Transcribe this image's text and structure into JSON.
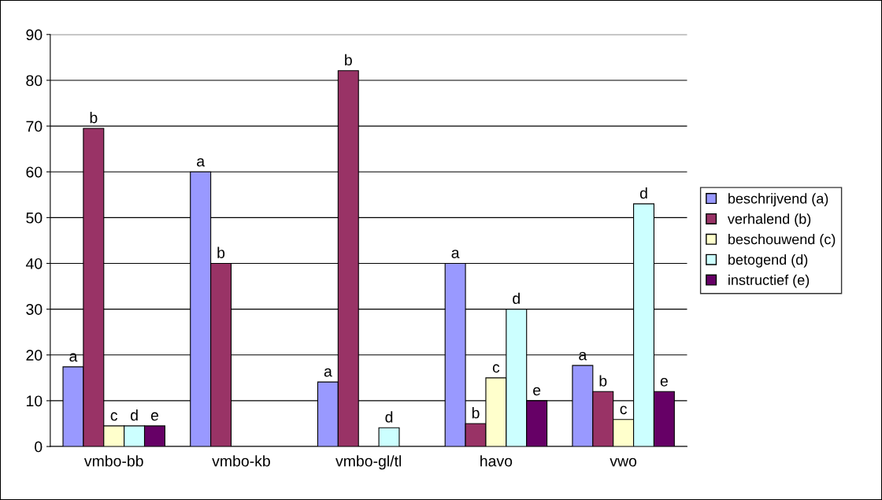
{
  "chart_data": {
    "type": "bar",
    "categories": [
      "vmbo-bb",
      "vmbo-kb",
      "vmbo-gl/tl",
      "havo",
      "vwo"
    ],
    "series": [
      {
        "name": "beschrijvend (a)",
        "color": "#9999ff",
        "values": [
          17.4,
          60,
          14.1,
          40,
          17.7
        ],
        "value_labels": [
          "a",
          "a",
          "a",
          "a",
          "a"
        ]
      },
      {
        "name": "verhalend (b)",
        "color": "#993366",
        "values": [
          69.5,
          40,
          82.1,
          5,
          12
        ],
        "value_labels": [
          "b",
          "b",
          "b",
          "b",
          "b"
        ]
      },
      {
        "name": "beschouwend (c)",
        "color": "#ffffcc",
        "values": [
          4.5,
          null,
          null,
          15,
          5.9
        ],
        "value_labels": [
          "c",
          null,
          null,
          "c",
          "c"
        ]
      },
      {
        "name": "betogend (d)",
        "color": "#ccffff",
        "values": [
          4.5,
          null,
          4.1,
          30,
          53
        ],
        "value_labels": [
          "d",
          null,
          "d",
          "d",
          "d"
        ]
      },
      {
        "name": "instructief (e)",
        "color": "#660066",
        "values": [
          4.5,
          null,
          null,
          10,
          12
        ],
        "value_labels": [
          "e",
          null,
          null,
          "e",
          "e"
        ]
      }
    ],
    "ylim": [
      0,
      90
    ],
    "yticks": [
      0,
      10,
      20,
      30,
      40,
      50,
      60,
      70,
      80,
      90
    ],
    "grid": "y",
    "legend": "right"
  }
}
